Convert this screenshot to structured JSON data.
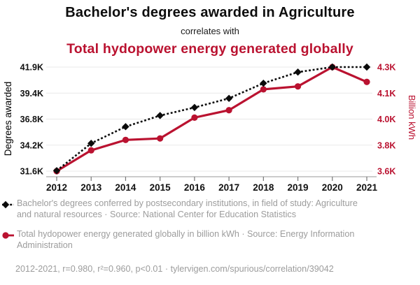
{
  "header": {
    "title": "Bachelor's degrees awarded in Agriculture",
    "connector": "correlates with",
    "subtitle": "Total hydopower energy generated globally"
  },
  "colors": {
    "series_black": "#0b0b0b",
    "series_red": "#ba1230",
    "grid": "#e9e9e9",
    "axis_line": "#999999",
    "tick_mark": "#777777",
    "tick_text": "#111111",
    "muted_text": "#9c9c9c"
  },
  "chart_data": {
    "type": "line",
    "x": [
      2012,
      2013,
      2014,
      2015,
      2016,
      2017,
      2018,
      2019,
      2020,
      2021
    ],
    "x_tick_labels": [
      "2012",
      "2013",
      "2014",
      "2015",
      "2016",
      "2017",
      "2018",
      "2019",
      "2020",
      "2021"
    ],
    "grid": true,
    "legend_position": "below",
    "left_axis": {
      "label": "Degrees awarded",
      "tick_labels": [
        "41.9K",
        "39.4K",
        "36.8K",
        "34.2K",
        "31.6K"
      ],
      "min": 31.6,
      "max": 41.9,
      "unit": "thousand degrees"
    },
    "right_axis": {
      "label": "Billion kWh",
      "tick_labels": [
        "4.3K",
        "4.1K",
        "4.0K",
        "3.8K",
        "3.6K"
      ],
      "min": 3.6,
      "max": 4.3,
      "unit": "thousand billion kWh"
    },
    "series": [
      {
        "name": "Bachelor's degrees conferred in Agriculture and natural resources",
        "axis": "left",
        "style": "dashed-diamond",
        "color": "#0b0b0b",
        "values": [
          31.65,
          34.35,
          36.0,
          37.1,
          37.9,
          38.8,
          40.3,
          41.4,
          41.9,
          41.9
        ]
      },
      {
        "name": "Total hydopower energy generated globally",
        "axis": "right",
        "style": "solid-circle",
        "color": "#ba1230",
        "values": [
          3.6,
          3.74,
          3.81,
          3.82,
          3.96,
          4.01,
          4.15,
          4.17,
          4.3,
          4.2
        ]
      }
    ]
  },
  "legend": {
    "items": [
      {
        "label": "Bachelor's degrees conferred by postsecondary institutions, in field of study: Agriculture and natural resources · Source: National Center for Education Statistics"
      },
      {
        "label": "Total hydopower energy generated globally in billion kWh · Source: Energy Information Administration"
      }
    ]
  },
  "footer": {
    "stats": "2012-2021, r=0.980, r²=0.960, p<0.01 · tylervigen.com/spurious/correlation/39042"
  }
}
